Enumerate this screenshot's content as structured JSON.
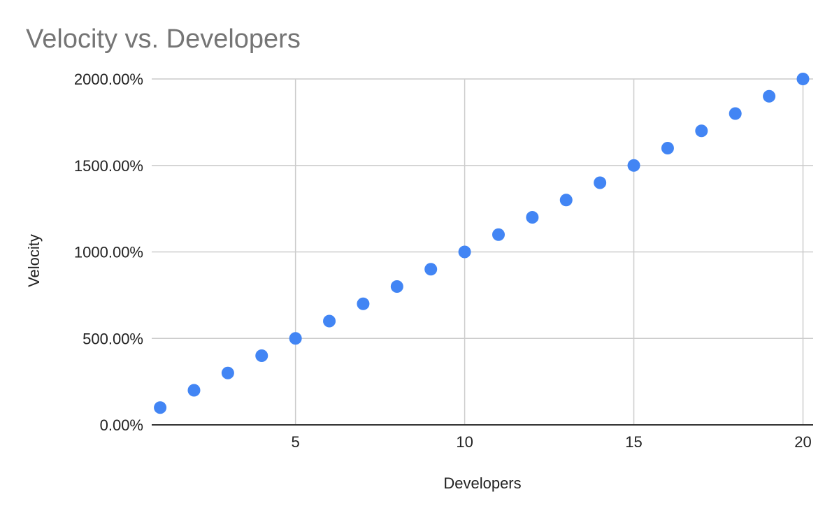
{
  "chart_data": {
    "type": "scatter",
    "title": "Velocity vs. Developers",
    "xlabel": "Developers",
    "ylabel": "Velocity",
    "xlim": [
      0.75,
      20.3
    ],
    "ylim": [
      0,
      20
    ],
    "x_ticks": [
      5,
      10,
      15,
      20
    ],
    "x_tick_labels": [
      "5",
      "10",
      "15",
      "20"
    ],
    "y_ticks": [
      0,
      5,
      10,
      15,
      20
    ],
    "y_tick_labels": [
      "0.00%",
      "500.00%",
      "1000.00%",
      "1500.00%",
      "2000.00%"
    ],
    "grid": true,
    "legend": "none",
    "series": [
      {
        "color": "#4285f4",
        "x": [
          1,
          2,
          3,
          4,
          5,
          6,
          7,
          8,
          9,
          10,
          11,
          12,
          13,
          14,
          15,
          16,
          17,
          18,
          19,
          20
        ],
        "y": [
          1,
          2,
          3,
          4,
          5,
          6,
          7,
          8,
          9,
          10,
          11,
          12,
          13,
          14,
          15,
          16,
          17,
          18,
          19,
          20
        ]
      }
    ]
  },
  "colors": {
    "point": "#4285f4",
    "grid": "#cccccc",
    "baseline": "#333333",
    "title": "#757575",
    "text": "#222222"
  }
}
